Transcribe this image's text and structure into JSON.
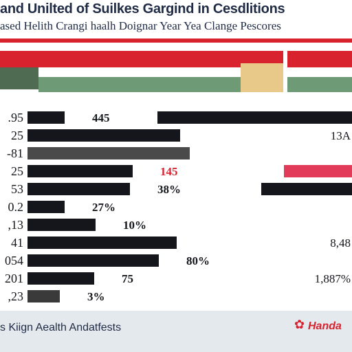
{
  "header": {
    "title": "and Unilted of Suilkes Gargind in Cesdlitions",
    "subtitle": "ased Helith Crangi haalh Doignar Year Yea Clange Pescores"
  },
  "footer": {
    "source_text": "s Kiign Aealth  Andatfests",
    "brand": "Handa"
  },
  "colors": {
    "accent": "#d8232f",
    "bar_dark": "#14161c",
    "bar_gray": "#5a5a5a",
    "green": "#4f7a5a",
    "tan": "#e8c98a"
  },
  "chart_data": {
    "type": "bar",
    "title": "and Unilted of Suilkes Gargind in Cesdlitions",
    "subtitle": "ased Helith Crangi haalh Doignar Year Yea Clange Pescores",
    "legend_band": [
      {
        "color": "#d8232f"
      },
      {
        "color": "#4f7a5a"
      },
      {
        "color": "#e8c98a"
      }
    ],
    "rows": [
      {
        "label": ".95",
        "left_value_label": "445",
        "left_share": 0.23,
        "right_share": 0.6,
        "left_color": "#14161c",
        "right_color": "#14161c",
        "right_label": ""
      },
      {
        "label": "25",
        "left_value_label": "",
        "left_share": 0.94,
        "right_share": 0.0,
        "left_color": "#14161c",
        "right_color": "#14161c",
        "right_label": "13A"
      },
      {
        "label": "-81",
        "left_value_label": "",
        "left_share": 1.0,
        "right_share": 0.0,
        "left_color": "#4a4a4a",
        "right_color": "#4a4a4a",
        "right_label": ""
      },
      {
        "label": "25",
        "left_value_label": "145",
        "left_share": 0.65,
        "right_share": 0.21,
        "left_color": "#14161c",
        "right_color": "#e23b5a",
        "right_label": ""
      },
      {
        "label": "53",
        "left_value_label": "38%",
        "left_share": 0.63,
        "right_share": 0.28,
        "left_color": "#14161c",
        "right_color": "#14161c",
        "right_label": ""
      },
      {
        "label": "0.2",
        "left_value_label": "27%",
        "left_share": 0.23,
        "right_share": 0.0,
        "left_color": "#14161c",
        "right_color": "#5a5a5a",
        "right_label": ""
      },
      {
        "label": ",13",
        "left_value_label": "10%",
        "left_share": 0.42,
        "right_share": 0.0,
        "left_color": "#14161c",
        "right_color": "#6a6a6a",
        "right_label": ""
      },
      {
        "label": "41",
        "left_value_label": "",
        "left_share": 0.92,
        "right_share": 0.0,
        "left_color": "#14161c",
        "right_color": "#14161c",
        "right_label": "8,48"
      },
      {
        "label": "054",
        "left_value_label": "80%",
        "left_share": 0.81,
        "right_share": 0.0,
        "left_color": "#14161c",
        "right_color": "#e23b5a",
        "right_label": ""
      },
      {
        "label": "201",
        "left_value_label": "75",
        "left_share": 0.41,
        "right_share": 0.0,
        "left_color": "#14161c",
        "right_color": "#14161c",
        "right_label": "1,887%"
      },
      {
        "label": ",23",
        "left_value_label": "3%",
        "left_share": 0.2,
        "right_share": 0.0,
        "left_color": "#3a3a3a",
        "right_color": "#e23b5a",
        "right_label": ""
      }
    ]
  }
}
